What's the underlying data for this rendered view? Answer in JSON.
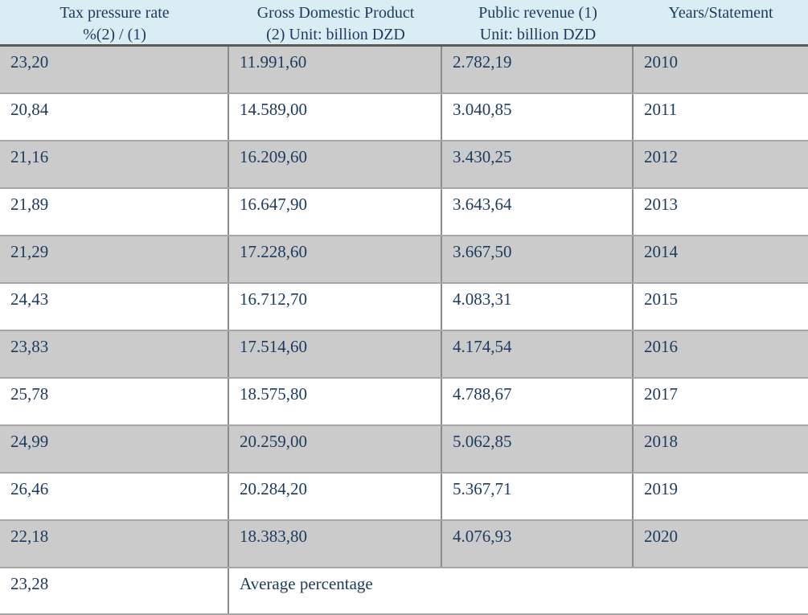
{
  "table": {
    "header": [
      {
        "line1": "Tax pressure rate",
        "line2": "%(2) / (1)"
      },
      {
        "line1": "Gross Domestic Product",
        "line2": "(2) Unit: billion DZD"
      },
      {
        "line1": "Public revenue (1)",
        "line2": "Unit: billion DZD"
      },
      {
        "line1": "Years/Statement",
        "line2": ""
      }
    ],
    "rows": [
      {
        "tax": "23,20",
        "gdp": "11.991,60",
        "rev": "2.782,19",
        "year": "2010"
      },
      {
        "tax": "20,84",
        "gdp": "14.589,00",
        "rev": "3.040,85",
        "year": "2011"
      },
      {
        "tax": "21,16",
        "gdp": "16.209,60",
        "rev": "3.430,25",
        "year": "2012"
      },
      {
        "tax": "21,89",
        "gdp": "16.647,90",
        "rev": "3.643,64",
        "year": "2013"
      },
      {
        "tax": "21,29",
        "gdp": "17.228,60",
        "rev": "3.667,50",
        "year": "2014"
      },
      {
        "tax": "24,43",
        "gdp": "16.712,70",
        "rev": "4.083,31",
        "year": "2015"
      },
      {
        "tax": "23,83",
        "gdp": "17.514,60",
        "rev": "4.174,54",
        "year": "2016"
      },
      {
        "tax": "25,78",
        "gdp": "18.575,80",
        "rev": "4.788,67",
        "year": "2017"
      },
      {
        "tax": "24,99",
        "gdp": "20.259,00",
        "rev": "5.062,85",
        "year": "2018"
      },
      {
        "tax": "26,46",
        "gdp": "20.284,20",
        "rev": "5.367,71",
        "year": "2019"
      },
      {
        "tax": "22,18",
        "gdp": "18.383,80",
        "rev": "4.076,93",
        "year": "2020"
      }
    ],
    "summary": {
      "tax": "23,28",
      "label": "Average percentage"
    }
  },
  "colors": {
    "header_bg": "#daecf4",
    "shaded_row_bg": "#cbcbcb",
    "plain_row_bg": "#ffffff",
    "text": "#1c3a5e",
    "header_underline": "#5a5a5a",
    "row_divider": "#a6a6a6",
    "column_divider": "#8c8c8c"
  }
}
